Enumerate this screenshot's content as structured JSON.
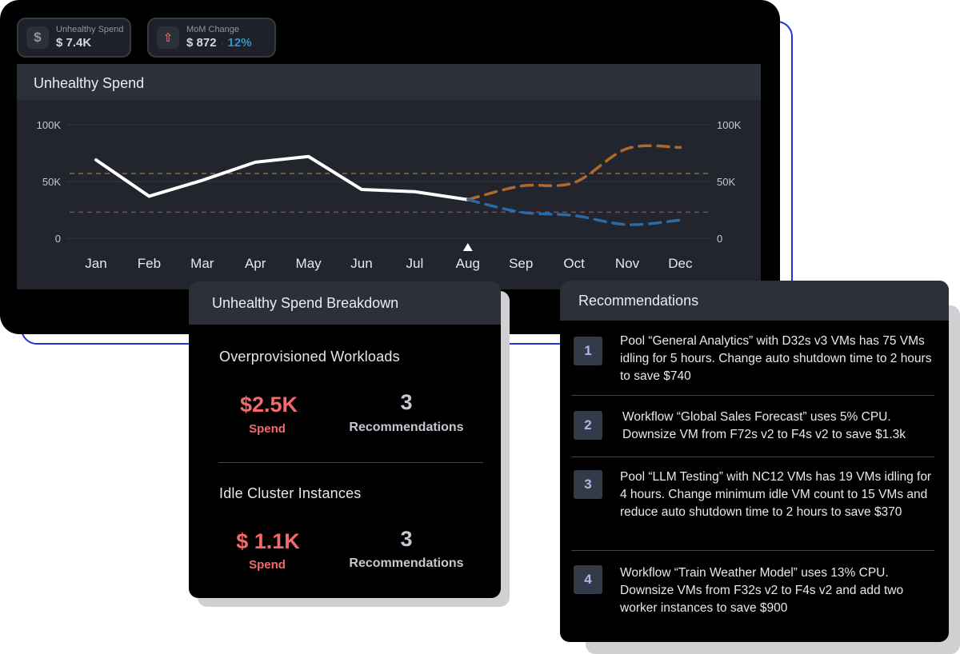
{
  "kpis": {
    "unhealthy_spend": {
      "icon": "dollar-icon",
      "label": "Unhealthy Spend",
      "value": "$ 7.4K"
    },
    "mom_change": {
      "icon": "arrow-up-icon",
      "label": "MoM Change",
      "value": "$ 872",
      "separator": "·",
      "percent": "12%"
    }
  },
  "chart": {
    "title": "Unhealthy Spend"
  },
  "chart_data": {
    "type": "line",
    "categories": [
      "Jan",
      "Feb",
      "Mar",
      "Apr",
      "May",
      "Jun",
      "Jul",
      "Aug",
      "Sep",
      "Oct",
      "Nov",
      "Dec"
    ],
    "y_ticks_left": [
      "100K",
      "50K",
      "0"
    ],
    "y_ticks_right": [
      "100K",
      "50K",
      "0"
    ],
    "ylim": [
      0,
      100000
    ],
    "current_month_marker": "Aug",
    "series": [
      {
        "style": "solid",
        "color": "#ffffff",
        "values": [
          69000,
          37000,
          51000,
          67000,
          72000,
          43000,
          41000,
          34000,
          null,
          null,
          null,
          null
        ]
      },
      {
        "style": "dashed",
        "color": "#b0692c",
        "values": [
          null,
          null,
          null,
          null,
          null,
          null,
          null,
          34000,
          46000,
          49000,
          79000,
          80000
        ]
      },
      {
        "style": "dashed",
        "color": "#2a6aa5",
        "values": [
          null,
          null,
          null,
          null,
          null,
          null,
          null,
          34000,
          23000,
          20000,
          12000,
          16000
        ]
      }
    ],
    "reference_lines": [
      {
        "value": 57000,
        "color": "#85723d"
      },
      {
        "value": 23000,
        "color": "#7c4d57"
      }
    ],
    "grid": true,
    "legend": "none"
  },
  "breakdown": {
    "title": "Unhealthy Spend Breakdown",
    "sections": [
      {
        "title": "Overprovisioned Workloads",
        "spend_value": "$2.5K",
        "spend_label": "Spend",
        "recs_value": "3",
        "recs_label": "Recommendations"
      },
      {
        "title": "Idle Cluster Instances",
        "spend_value": "$ 1.1K",
        "spend_label": "Spend",
        "recs_value": "3",
        "recs_label": "Recommendations"
      }
    ]
  },
  "recommendations": {
    "title": "Recommendations",
    "items": [
      {
        "number": "1",
        "text": "Pool “General Analytics” with D32s v3 VMs has 75 VMs idling for 5 hours. Change auto shutdown time to 2 hours to save $740"
      },
      {
        "number": "2",
        "text": "Workflow “Global Sales Forecast” uses 5% CPU. Downsize VM from F72s v2 to F4s v2 to save $1.3k"
      },
      {
        "number": "3",
        "text": "Pool “LLM Testing” with NC12 VMs has 19 VMs idling for 4 hours. Change minimum idle VM count to 15 VMs and reduce auto shutdown time to 2 hours to save $370"
      },
      {
        "number": "4",
        "text": "Workflow “Train Weather Model” uses 13% CPU. Downsize VMs from F32s v2 to F4s v2 and add two worker instances to save $900"
      }
    ]
  }
}
